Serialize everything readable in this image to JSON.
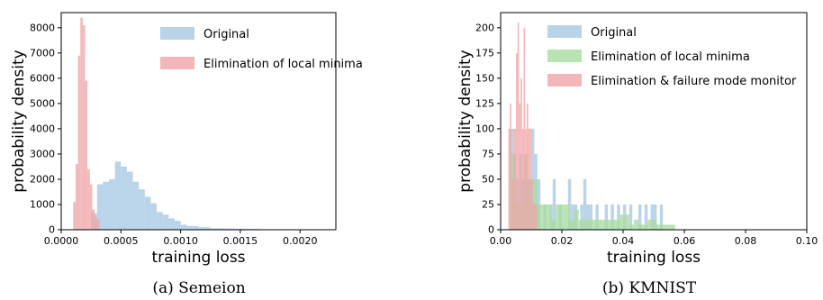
{
  "chart_data": [
    {
      "type": "histogram",
      "caption": "(a) Semeion",
      "xlabel": "training loss",
      "ylabel": "probability density",
      "xlim": [
        0,
        0.0023
      ],
      "ylim": [
        0,
        8600
      ],
      "xticks": [
        "0.0000",
        "0.0005",
        "0.0010",
        "0.0015",
        "0.0020"
      ],
      "yticks": [
        "0",
        "1000",
        "2000",
        "3000",
        "4000",
        "5000",
        "6000",
        "7000",
        "8000"
      ],
      "xtick_values": [
        0,
        0.0005,
        0.001,
        0.0015,
        0.002
      ],
      "ytick_values": [
        0,
        1000,
        2000,
        3000,
        4000,
        5000,
        6000,
        7000,
        8000
      ],
      "grid": false,
      "legend_position": "top-right",
      "series": [
        {
          "name": "Original",
          "color": "#a7c8e4",
          "bin_edges": [
            0.00025,
            0.0003,
            0.00035,
            0.0004,
            0.00045,
            0.0005,
            0.00055,
            0.0006,
            0.00065,
            0.0007,
            0.00075,
            0.0008,
            0.00085,
            0.0009,
            0.00095,
            0.001,
            0.00105,
            0.0011,
            0.00115,
            0.0012,
            0.00125,
            0.0013,
            0.00135,
            0.0014,
            0.00145,
            0.0015,
            0.00155,
            0.0016,
            0.00165,
            0.0017
          ],
          "values": [
            650,
            1800,
            1900,
            2000,
            2700,
            2500,
            2300,
            1900,
            1600,
            1300,
            1050,
            700,
            600,
            450,
            350,
            200,
            150,
            150,
            100,
            100,
            60,
            60,
            50,
            50,
            40,
            40,
            30,
            30,
            20
          ]
        },
        {
          "name": "Elimination of local minima",
          "color": "#f0a5a8",
          "bin_edges": [
            0.0001,
            0.00012,
            0.00014,
            0.00016,
            0.00018,
            0.0002,
            0.00022,
            0.00024,
            0.00026,
            0.00028,
            0.0003,
            0.00032
          ],
          "values": [
            1100,
            2600,
            6900,
            8400,
            8100,
            5900,
            2400,
            1800,
            800,
            500,
            400
          ]
        }
      ]
    },
    {
      "type": "histogram",
      "caption": "(b) KMNIST",
      "xlabel": "training loss",
      "ylabel": "probability density",
      "xlim": [
        0,
        0.1
      ],
      "ylim": [
        0,
        215
      ],
      "xticks": [
        "0.00",
        "0.02",
        "0.04",
        "0.06",
        "0.08",
        "0.10"
      ],
      "yticks": [
        "0",
        "25",
        "50",
        "75",
        "100",
        "125",
        "150",
        "175",
        "200"
      ],
      "xtick_values": [
        0,
        0.02,
        0.04,
        0.06,
        0.08,
        0.1
      ],
      "ytick_values": [
        0,
        25,
        50,
        75,
        100,
        125,
        150,
        175,
        200
      ],
      "grid": false,
      "legend_position": "top-right",
      "series": [
        {
          "name": "Original",
          "color": "#a7c8e4",
          "bin_edges": [
            0.003,
            0.004,
            0.005,
            0.006,
            0.007,
            0.008,
            0.009,
            0.01,
            0.011,
            0.012,
            0.013,
            0.014,
            0.015,
            0.016,
            0.017,
            0.018,
            0.019,
            0.02,
            0.021,
            0.022,
            0.023,
            0.024,
            0.025,
            0.026,
            0.027,
            0.028,
            0.029,
            0.03,
            0.031,
            0.032,
            0.033,
            0.034,
            0.035,
            0.036,
            0.037,
            0.038,
            0.039,
            0.04,
            0.041,
            0.042,
            0.043,
            0.044,
            0.045,
            0.046,
            0.047,
            0.048,
            0.049,
            0.05,
            0.051,
            0.052,
            0.053,
            0.054
          ],
          "values": [
            100,
            75,
            25,
            75,
            50,
            50,
            50,
            100,
            75,
            50,
            0,
            25,
            0,
            25,
            50,
            0,
            25,
            0,
            0,
            50,
            25,
            25,
            0,
            25,
            50,
            25,
            25,
            0,
            25,
            0,
            0,
            25,
            0,
            25,
            0,
            25,
            0,
            25,
            0,
            25,
            0,
            0,
            25,
            0,
            25,
            0,
            25,
            25,
            0,
            25,
            0
          ]
        },
        {
          "name": "Elimination of local minima",
          "color": "#a8dca0",
          "bin_edges": [
            0.003,
            0.0045,
            0.006,
            0.0075,
            0.009,
            0.0105,
            0.012,
            0.0135,
            0.015,
            0.0165,
            0.018,
            0.0195,
            0.021,
            0.0225,
            0.024,
            0.0255,
            0.027,
            0.0285,
            0.03,
            0.0315,
            0.033,
            0.0345,
            0.036,
            0.0375,
            0.039,
            0.0405,
            0.042,
            0.0435,
            0.045,
            0.0465,
            0.048,
            0.0495,
            0.051,
            0.0525,
            0.054,
            0.0555,
            0.057
          ],
          "values": [
            75,
            50,
            25,
            75,
            50,
            50,
            25,
            25,
            25,
            10,
            25,
            25,
            25,
            10,
            20,
            10,
            10,
            10,
            10,
            10,
            10,
            10,
            10,
            10,
            15,
            15,
            5,
            10,
            5,
            5,
            10,
            10,
            5,
            5,
            5,
            5
          ]
        },
        {
          "name": "Elimination & failure mode monitor",
          "color": "#f0a5a8",
          "bin_edges": [
            0.0025,
            0.003,
            0.0035,
            0.004,
            0.0045,
            0.005,
            0.0055,
            0.006,
            0.0065,
            0.007,
            0.0075,
            0.008,
            0.0085,
            0.009,
            0.0095,
            0.01,
            0.0105,
            0.011,
            0.0115,
            0.012
          ],
          "values": [
            100,
            125,
            50,
            100,
            100,
            175,
            205,
            125,
            150,
            100,
            200,
            100,
            125,
            100,
            100,
            50,
            25,
            25,
            25
          ]
        }
      ]
    }
  ]
}
